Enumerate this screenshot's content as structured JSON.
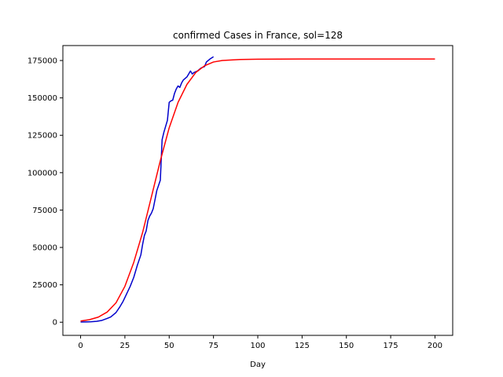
{
  "chart_data": {
    "type": "line",
    "title": "confirmed Cases in France, sol=128",
    "xlabel": "Day",
    "ylabel": "",
    "xlim": [
      -10,
      210
    ],
    "ylim": [
      -8800,
      185000
    ],
    "x_ticks": [
      0,
      25,
      50,
      75,
      100,
      125,
      150,
      175,
      200
    ],
    "y_ticks": [
      0,
      25000,
      50000,
      75000,
      100000,
      125000,
      150000,
      175000
    ],
    "grid": false,
    "legend": "none",
    "series": [
      {
        "color": "#0000cc",
        "style": "observed",
        "points": [
          [
            0,
            100
          ],
          [
            3,
            200
          ],
          [
            6,
            300
          ],
          [
            9,
            600
          ],
          [
            12,
            1200
          ],
          [
            15,
            2500
          ],
          [
            17,
            3500
          ],
          [
            18,
            4500
          ],
          [
            19,
            5500
          ],
          [
            20,
            6500
          ],
          [
            22,
            10000
          ],
          [
            24,
            14000
          ],
          [
            26,
            19000
          ],
          [
            28,
            24000
          ],
          [
            30,
            30000
          ],
          [
            32,
            38000
          ],
          [
            34,
            45000
          ],
          [
            35,
            52000
          ],
          [
            36,
            58000
          ],
          [
            37,
            61000
          ],
          [
            38,
            68000
          ],
          [
            39,
            71000
          ],
          [
            40,
            73000
          ],
          [
            41,
            76000
          ],
          [
            42,
            82000
          ],
          [
            43,
            88000
          ],
          [
            45,
            95000
          ],
          [
            46,
            122000
          ],
          [
            47,
            127000
          ],
          [
            48,
            131000
          ],
          [
            49,
            135000
          ],
          [
            50,
            147000
          ],
          [
            51,
            148000
          ],
          [
            52,
            148500
          ],
          [
            53,
            153000
          ],
          [
            54,
            156000
          ],
          [
            55,
            158000
          ],
          [
            56,
            157000
          ],
          [
            57,
            160000
          ],
          [
            58,
            162000
          ],
          [
            60,
            164000
          ],
          [
            62,
            168000
          ],
          [
            63,
            166000
          ],
          [
            64,
            167000
          ],
          [
            66,
            168000
          ],
          [
            68,
            170000
          ],
          [
            70,
            171000
          ],
          [
            71,
            174000
          ],
          [
            72,
            175000
          ],
          [
            73,
            176000
          ],
          [
            75,
            177500
          ]
        ]
      },
      {
        "color": "#ff0000",
        "style": "fit",
        "points": [
          [
            0,
            800
          ],
          [
            5,
            1700
          ],
          [
            10,
            3400
          ],
          [
            15,
            6800
          ],
          [
            20,
            13000
          ],
          [
            25,
            24000
          ],
          [
            30,
            40000
          ],
          [
            35,
            60000
          ],
          [
            40,
            84000
          ],
          [
            45,
            108000
          ],
          [
            50,
            130000
          ],
          [
            55,
            147000
          ],
          [
            60,
            159000
          ],
          [
            65,
            167000
          ],
          [
            70,
            171500
          ],
          [
            75,
            174000
          ],
          [
            80,
            175000
          ],
          [
            90,
            175700
          ],
          [
            100,
            175900
          ],
          [
            125,
            176000
          ],
          [
            150,
            176000
          ],
          [
            175,
            176000
          ],
          [
            200,
            176000
          ]
        ]
      }
    ]
  }
}
